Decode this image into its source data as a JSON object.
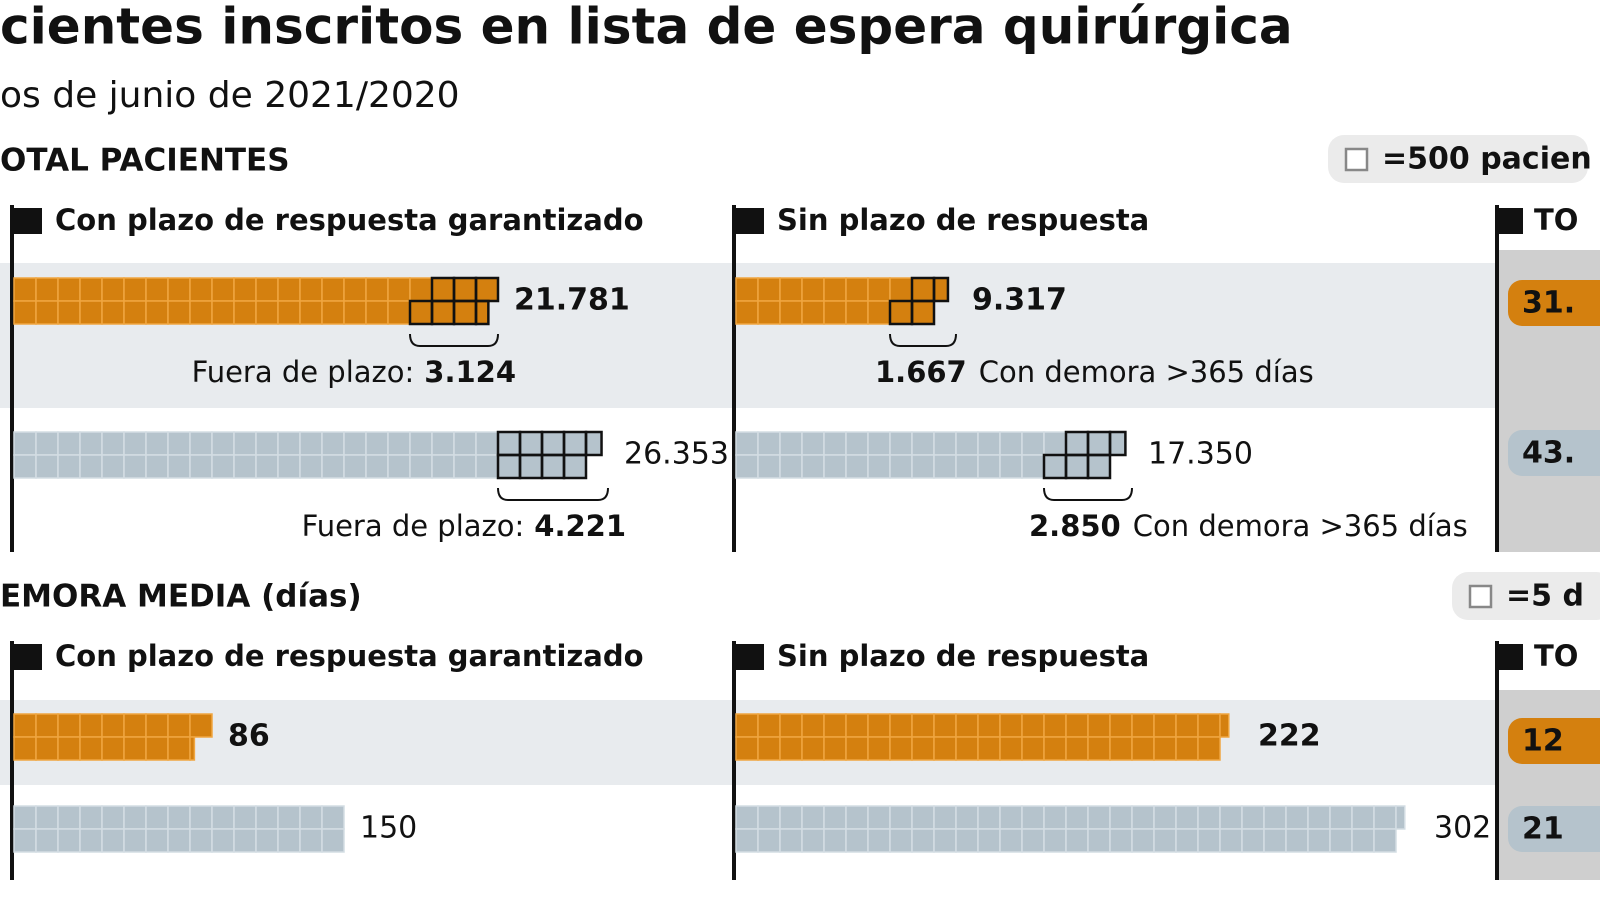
{
  "header": {
    "title": "cientes inscritos en lista de espera quirúrgica",
    "subtitle": "os de junio de 2021/2020"
  },
  "sections": [
    {
      "label": "OTAL PACIENTES",
      "legend": {
        "label": "=500 pacien",
        "value": 500
      },
      "panels": [
        {
          "title": "Con plazo de respuesta garantizado",
          "rows": [
            {
              "value": 21781,
              "value_label": "21.781",
              "sub_value": 3124,
              "sub_label": "3.124",
              "note": "Fuera de plazo:"
            },
            {
              "value": 26353,
              "value_label": "26.353",
              "sub_value": 4221,
              "sub_label": "4.221",
              "note": "Fuera de plazo:"
            }
          ]
        },
        {
          "title": "Sin plazo de respuesta",
          "rows": [
            {
              "value": 9317,
              "value_label": "9.317",
              "sub_value": 1667,
              "sub_label": "1.667",
              "note": "Con demora >365 días"
            },
            {
              "value": 17350,
              "value_label": "17.350",
              "sub_value": 2850,
              "sub_label": "2.850",
              "note": "Con demora >365 días"
            }
          ]
        }
      ],
      "total": {
        "title": "TO",
        "labels": [
          "31.",
          "43."
        ]
      }
    },
    {
      "label": "EMORA MEDIA (días)",
      "legend": {
        "label": "=5 d",
        "value": 5
      },
      "panels": [
        {
          "title": "Con plazo de respuesta garantizado",
          "rows": [
            {
              "value": 86
            },
            {
              "value": 150
            }
          ]
        },
        {
          "title": "Sin plazo de respuesta",
          "rows": [
            {
              "value": 222
            },
            {
              "value": 302
            }
          ]
        }
      ],
      "total": {
        "title": "TO",
        "labels": [
          "12",
          "21"
        ]
      }
    }
  ]
}
